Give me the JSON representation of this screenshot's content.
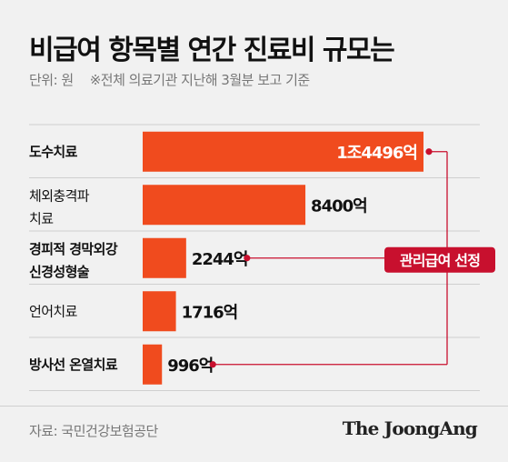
{
  "header": {
    "title": "비급여 항목별 연간 진료비 규모는",
    "unit": "단위: 원",
    "note": "※전체 의료기관 지난해 3월분 보고 기준"
  },
  "chart_data": {
    "type": "bar",
    "orientation": "horizontal",
    "title": "비급여 항목별 연간 진료비 규모는",
    "unit": "억 원",
    "categories": [
      [
        "도수치료"
      ],
      [
        "체외충격파",
        "치료"
      ],
      [
        "경피적 경막외강",
        "신경성형술"
      ],
      [
        "언어치료"
      ],
      [
        "방사선 온열치료"
      ]
    ],
    "values": [
      14496,
      8400,
      2244,
      1716,
      996
    ],
    "data_labels": [
      "1조4496억",
      "8400억",
      "2244억",
      "1716억",
      "996억"
    ],
    "bold_categories": [
      true,
      false,
      true,
      false,
      true
    ],
    "bar_color": "#f04b1e",
    "annotation": {
      "text": "관리급여 선정",
      "targets": [
        "도수치료",
        "경피적 경막외강 신경성형술",
        "방사선 온열치료"
      ],
      "color": "#c8102e"
    }
  },
  "footer": {
    "source": "자료: 국민건강보험공단",
    "brand": "The JoongAng"
  }
}
